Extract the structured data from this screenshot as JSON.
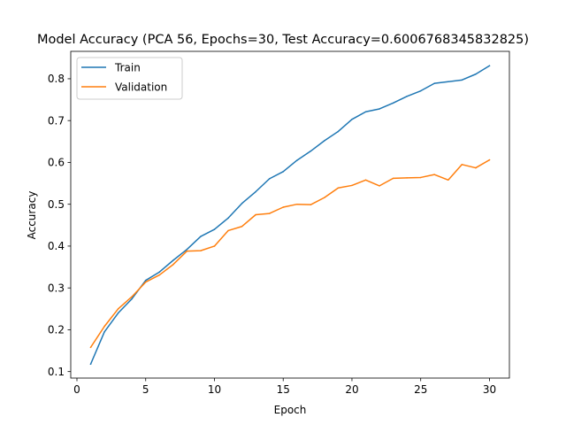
{
  "chart_data": {
    "type": "line",
    "title": "Model Accuracy (PCA 56, Epochs=30, Test Accuracy=0.6006768345832825)",
    "xlabel": "Epoch",
    "ylabel": "Accuracy",
    "xlim": [
      -0.45,
      31.45
    ],
    "ylim": [
      0.0845,
      0.8655
    ],
    "xticks": [
      0,
      5,
      10,
      15,
      20,
      25,
      30
    ],
    "yticks": [
      0.1,
      0.2,
      0.3,
      0.4,
      0.5,
      0.6,
      0.7,
      0.8
    ],
    "grid": false,
    "legend_position": "upper-left",
    "x": [
      1,
      2,
      3,
      4,
      5,
      6,
      7,
      8,
      9,
      10,
      11,
      12,
      13,
      14,
      15,
      16,
      17,
      18,
      19,
      20,
      21,
      22,
      23,
      24,
      25,
      26,
      27,
      28,
      29,
      30
    ],
    "series": [
      {
        "name": "Train",
        "color": "#1f77b4",
        "values": [
          0.118,
          0.195,
          0.24,
          0.274,
          0.318,
          0.338,
          0.366,
          0.392,
          0.423,
          0.44,
          0.467,
          0.502,
          0.53,
          0.561,
          0.578,
          0.605,
          0.627,
          0.652,
          0.674,
          0.703,
          0.721,
          0.728,
          0.742,
          0.758,
          0.771,
          0.789,
          0.793,
          0.797,
          0.811,
          0.831
        ]
      },
      {
        "name": "Validation",
        "color": "#ff7f0e",
        "values": [
          0.158,
          0.208,
          0.25,
          0.279,
          0.314,
          0.331,
          0.356,
          0.388,
          0.389,
          0.4,
          0.437,
          0.447,
          0.475,
          0.478,
          0.493,
          0.5,
          0.499,
          0.516,
          0.539,
          0.545,
          0.558,
          0.544,
          0.562,
          0.563,
          0.564,
          0.571,
          0.558,
          0.595,
          0.587,
          0.606
        ]
      }
    ]
  }
}
